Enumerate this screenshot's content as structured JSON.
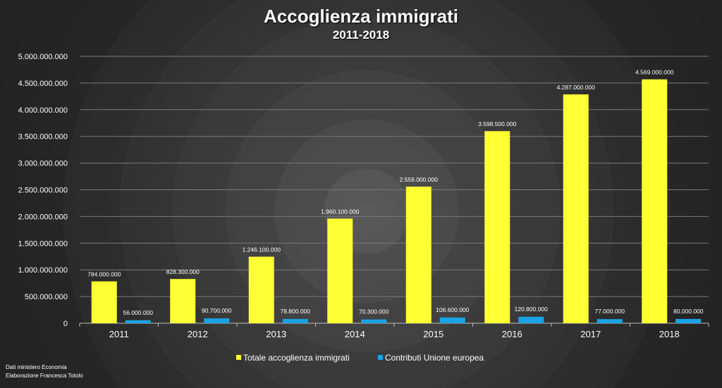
{
  "chart_data": {
    "type": "bar",
    "title": "Accoglienza immigrati",
    "subtitle": "2011-2018",
    "categories": [
      "2011",
      "2012",
      "2013",
      "2014",
      "2015",
      "2016",
      "2017",
      "2018"
    ],
    "series": [
      {
        "name": "Totale accoglienza immigrati",
        "color": "#ffff33",
        "values": [
          784000000,
          828300000,
          1246100000,
          1960100000,
          2559000000,
          3598500000,
          4287000000,
          4569000000
        ],
        "labels": [
          "784.000.000",
          "828.300.000",
          "1.246.100.000",
          "1.960.100.000",
          "2.559.000.000",
          "3.598.500.000",
          "4.287.000.000",
          "4.569.000.000"
        ]
      },
      {
        "name": "Contributi Unione europea",
        "color": "#1aa3e6",
        "values": [
          56000000,
          90700000,
          78800000,
          70300000,
          106600000,
          120800000,
          77000000,
          80000000
        ],
        "labels": [
          "56.000.000",
          "90.700.000",
          "78.800.000",
          "70.300.000",
          "106.600.000",
          "120.800.000",
          "77.000.000",
          "80.000.000"
        ]
      }
    ],
    "ylim": [
      0,
      5000000000
    ],
    "yticks": [
      {
        "value": 0,
        "label": "0"
      },
      {
        "value": 500000000,
        "label": "500.000.000"
      },
      {
        "value": 1000000000,
        "label": "1.000.000.000"
      },
      {
        "value": 1500000000,
        "label": "1.500.000.000"
      },
      {
        "value": 2000000000,
        "label": "2.000.000.000"
      },
      {
        "value": 2500000000,
        "label": "2.500.000.000"
      },
      {
        "value": 3000000000,
        "label": "3.000.000.000"
      },
      {
        "value": 3500000000,
        "label": "3.500.000.000"
      },
      {
        "value": 4000000000,
        "label": "4.000.000.000"
      },
      {
        "value": 4500000000,
        "label": "4.500.000.000"
      },
      {
        "value": 5000000000,
        "label": "5.000.000.000"
      }
    ],
    "grid": true,
    "legend_position": "bottom-center"
  },
  "credits": {
    "line1": "Dati ministero Economia",
    "line2": "Elaborazione Francesca Totolo"
  }
}
